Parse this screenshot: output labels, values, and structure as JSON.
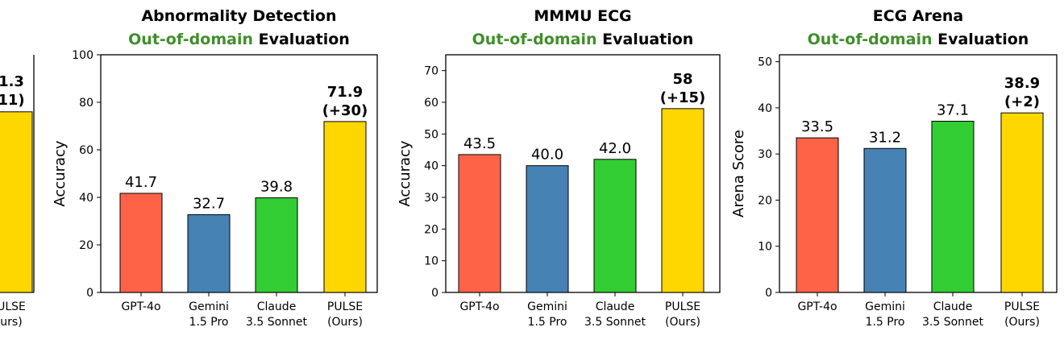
{
  "chart_data": [
    {
      "type": "bar",
      "title": "",
      "title_fragments": [
        "1.3",
        "11)"
      ],
      "xlabel": "",
      "ylabel": "",
      "categories": [
        "PULSE (Ours)"
      ],
      "category_lines": [
        [
          "ULSE",
          "urs)"
        ]
      ],
      "values": [
        76
      ],
      "value_labels": [
        ""
      ],
      "colors": [
        "#FFD700"
      ],
      "ylim": [
        0,
        100
      ],
      "partial": true
    },
    {
      "type": "bar",
      "title": "Abnormality Detection",
      "subtitle_green": "Out-of-domain",
      "subtitle_rest": " Evaluation",
      "xlabel": "",
      "ylabel": "Accuracy",
      "categories": [
        "GPT-4o",
        "Gemini 1.5 Pro",
        "Claude 3.5 Sonnet",
        "PULSE (Ours)"
      ],
      "category_lines": [
        [
          "GPT-4o"
        ],
        [
          "Gemini",
          "1.5 Pro"
        ],
        [
          "Claude",
          "3.5 Sonnet"
        ],
        [
          "PULSE",
          "(Ours)"
        ]
      ],
      "values": [
        41.7,
        32.7,
        39.8,
        71.9
      ],
      "value_labels": [
        "41.7",
        "32.7",
        "39.8",
        "71.9\n(+30)"
      ],
      "colors": [
        "#FF6347",
        "#4682B4",
        "#32CD32",
        "#FFD700"
      ],
      "ylim": [
        0,
        100
      ],
      "yticks": [
        0,
        20,
        40,
        60,
        80,
        100
      ]
    },
    {
      "type": "bar",
      "title": "MMMU ECG",
      "subtitle_green": "Out-of-domain",
      "subtitle_rest": " Evaluation",
      "xlabel": "",
      "ylabel": "Accuracy",
      "categories": [
        "GPT-4o",
        "Gemini 1.5 Pro",
        "Claude 3.5 Sonnet",
        "PULSE (Ours)"
      ],
      "category_lines": [
        [
          "GPT-4o"
        ],
        [
          "Gemini",
          "1.5 Pro"
        ],
        [
          "Claude",
          "3.5 Sonnet"
        ],
        [
          "PULSE",
          "(Ours)"
        ]
      ],
      "values": [
        43.5,
        40.0,
        42.0,
        58
      ],
      "value_labels": [
        "43.5",
        "40.0",
        "42.0",
        "58\n(+15)"
      ],
      "colors": [
        "#FF6347",
        "#4682B4",
        "#32CD32",
        "#FFD700"
      ],
      "ylim": [
        0,
        75
      ],
      "yticks": [
        0,
        10,
        20,
        30,
        40,
        50,
        60,
        70
      ]
    },
    {
      "type": "bar",
      "title": "ECG Arena",
      "subtitle_green": "Out-of-domain",
      "subtitle_rest": " Evaluation",
      "xlabel": "",
      "ylabel": "Arena Score",
      "categories": [
        "GPT-4o",
        "Gemini 1.5 Pro",
        "Claude 3.5 Sonnet",
        "PULSE (Ours)"
      ],
      "category_lines": [
        [
          "GPT-4o"
        ],
        [
          "Gemini",
          "1.5 Pro"
        ],
        [
          "Claude",
          "3.5 Sonnet"
        ],
        [
          "PULSE",
          "(Ours)"
        ]
      ],
      "values": [
        33.5,
        31.2,
        37.1,
        38.9
      ],
      "value_labels": [
        "33.5",
        "31.2",
        "37.1",
        "38.9\n(+2)"
      ],
      "colors": [
        "#FF6347",
        "#4682B4",
        "#32CD32",
        "#FFD700"
      ],
      "ylim": [
        0,
        51.5
      ],
      "yticks": [
        0,
        10,
        20,
        30,
        40,
        50
      ]
    }
  ]
}
